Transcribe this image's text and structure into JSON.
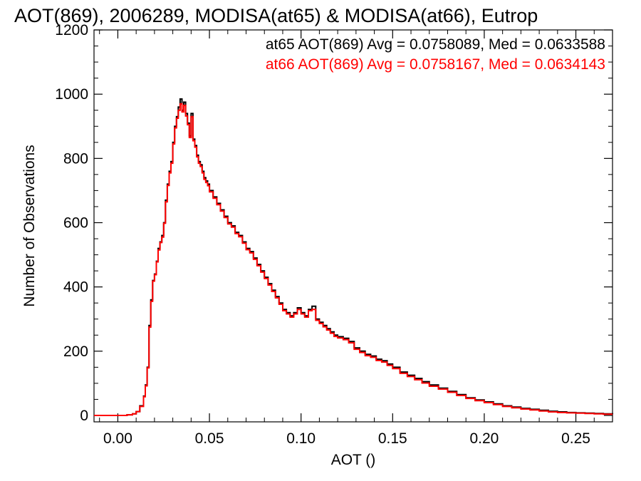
{
  "chart_data": {
    "type": "line",
    "title": "AOT(869), 2006289, MODISA(at65) & MODISA(at66), Eutrop",
    "xlabel": "AOT ()",
    "ylabel": "Number of Observations",
    "xlim": [
      -0.013,
      0.27
    ],
    "ylim": [
      -20,
      1200
    ],
    "x_ticks": [
      0.0,
      0.05,
      0.1,
      0.15,
      0.2,
      0.25
    ],
    "x_tick_labels": [
      "0.00",
      "0.05",
      "0.10",
      "0.15",
      "0.20",
      "0.25"
    ],
    "y_ticks": [
      0,
      200,
      400,
      600,
      800,
      1000,
      1200
    ],
    "y_tick_labels": [
      "0",
      "200",
      "400",
      "600",
      "800",
      "1000",
      "1200"
    ],
    "grid": false,
    "step": "histogram",
    "legend_placement": "top-right",
    "annotations": [
      {
        "text": "at65 AOT(869) Avg = 0.0758089, Med = 0.0633588",
        "color": "#000000"
      },
      {
        "text": "at66 AOT(869) Avg = 0.0758167, Med = 0.0634143",
        "color": "#ff0000"
      }
    ],
    "series": [
      {
        "color": "#000000",
        "x": [
          -0.013,
          0.0,
          0.005,
          0.008,
          0.01,
          0.012,
          0.014,
          0.015,
          0.016,
          0.017,
          0.018,
          0.019,
          0.02,
          0.021,
          0.022,
          0.023,
          0.024,
          0.025,
          0.026,
          0.027,
          0.028,
          0.029,
          0.03,
          0.031,
          0.032,
          0.033,
          0.034,
          0.035,
          0.036,
          0.037,
          0.038,
          0.039,
          0.04,
          0.041,
          0.042,
          0.043,
          0.044,
          0.045,
          0.046,
          0.047,
          0.048,
          0.049,
          0.05,
          0.052,
          0.054,
          0.056,
          0.058,
          0.06,
          0.062,
          0.064,
          0.066,
          0.068,
          0.07,
          0.072,
          0.074,
          0.076,
          0.078,
          0.08,
          0.082,
          0.084,
          0.086,
          0.088,
          0.09,
          0.092,
          0.094,
          0.096,
          0.098,
          0.1,
          0.102,
          0.104,
          0.106,
          0.108,
          0.11,
          0.112,
          0.114,
          0.116,
          0.118,
          0.12,
          0.123,
          0.126,
          0.129,
          0.132,
          0.135,
          0.138,
          0.141,
          0.144,
          0.147,
          0.15,
          0.154,
          0.158,
          0.162,
          0.166,
          0.17,
          0.175,
          0.18,
          0.185,
          0.19,
          0.195,
          0.2,
          0.205,
          0.21,
          0.215,
          0.22,
          0.225,
          0.23,
          0.235,
          0.24,
          0.245,
          0.25,
          0.255,
          0.26,
          0.265,
          0.27
        ],
        "values": [
          0,
          0,
          2,
          5,
          12,
          30,
          60,
          95,
          150,
          280,
          360,
          420,
          440,
          480,
          520,
          540,
          560,
          600,
          670,
          720,
          760,
          790,
          850,
          900,
          930,
          960,
          985,
          950,
          975,
          940,
          910,
          870,
          940,
          860,
          840,
          810,
          790,
          780,
          760,
          740,
          730,
          720,
          700,
          680,
          660,
          640,
          620,
          600,
          590,
          570,
          560,
          540,
          520,
          510,
          490,
          470,
          450,
          430,
          410,
          390,
          370,
          350,
          330,
          320,
          310,
          320,
          335,
          320,
          310,
          330,
          340,
          300,
          290,
          280,
          270,
          260,
          250,
          245,
          240,
          230,
          210,
          200,
          190,
          185,
          175,
          170,
          160,
          150,
          135,
          125,
          115,
          105,
          95,
          85,
          75,
          65,
          55,
          48,
          42,
          36,
          30,
          26,
          22,
          19,
          16,
          13,
          11,
          9,
          8,
          7,
          6,
          5,
          4
        ]
      },
      {
        "color": "#ff0000",
        "x": [
          -0.013,
          0.0,
          0.005,
          0.008,
          0.01,
          0.012,
          0.014,
          0.015,
          0.016,
          0.017,
          0.018,
          0.019,
          0.02,
          0.021,
          0.022,
          0.023,
          0.024,
          0.025,
          0.026,
          0.027,
          0.028,
          0.029,
          0.03,
          0.031,
          0.032,
          0.033,
          0.034,
          0.035,
          0.036,
          0.037,
          0.038,
          0.039,
          0.04,
          0.041,
          0.042,
          0.043,
          0.044,
          0.045,
          0.046,
          0.047,
          0.048,
          0.049,
          0.05,
          0.052,
          0.054,
          0.056,
          0.058,
          0.06,
          0.062,
          0.064,
          0.066,
          0.068,
          0.07,
          0.072,
          0.074,
          0.076,
          0.078,
          0.08,
          0.082,
          0.084,
          0.086,
          0.088,
          0.09,
          0.092,
          0.094,
          0.096,
          0.098,
          0.1,
          0.102,
          0.104,
          0.106,
          0.108,
          0.11,
          0.112,
          0.114,
          0.116,
          0.118,
          0.12,
          0.123,
          0.126,
          0.129,
          0.132,
          0.135,
          0.138,
          0.141,
          0.144,
          0.147,
          0.15,
          0.154,
          0.158,
          0.162,
          0.166,
          0.17,
          0.175,
          0.18,
          0.185,
          0.19,
          0.195,
          0.2,
          0.205,
          0.21,
          0.215,
          0.22,
          0.225,
          0.23,
          0.235,
          0.24,
          0.245,
          0.25,
          0.255,
          0.26,
          0.265,
          0.27
        ],
        "values": [
          0,
          0,
          2,
          5,
          12,
          28,
          58,
          92,
          148,
          275,
          355,
          418,
          438,
          478,
          515,
          538,
          555,
          598,
          665,
          716,
          755,
          785,
          845,
          895,
          925,
          950,
          970,
          945,
          965,
          932,
          905,
          865,
          930,
          855,
          835,
          805,
          785,
          775,
          755,
          735,
          725,
          715,
          696,
          676,
          656,
          636,
          616,
          596,
          586,
          566,
          556,
          536,
          516,
          506,
          486,
          466,
          446,
          426,
          406,
          386,
          366,
          346,
          326,
          316,
          306,
          316,
          330,
          316,
          306,
          326,
          330,
          296,
          286,
          276,
          266,
          256,
          246,
          241,
          236,
          226,
          206,
          196,
          186,
          181,
          171,
          166,
          156,
          146,
          131,
          121,
          111,
          101,
          91,
          82,
          72,
          62,
          53,
          46,
          40,
          34,
          28,
          24,
          20,
          17,
          14,
          11,
          9,
          8,
          7,
          6,
          5,
          4,
          4
        ]
      }
    ]
  }
}
